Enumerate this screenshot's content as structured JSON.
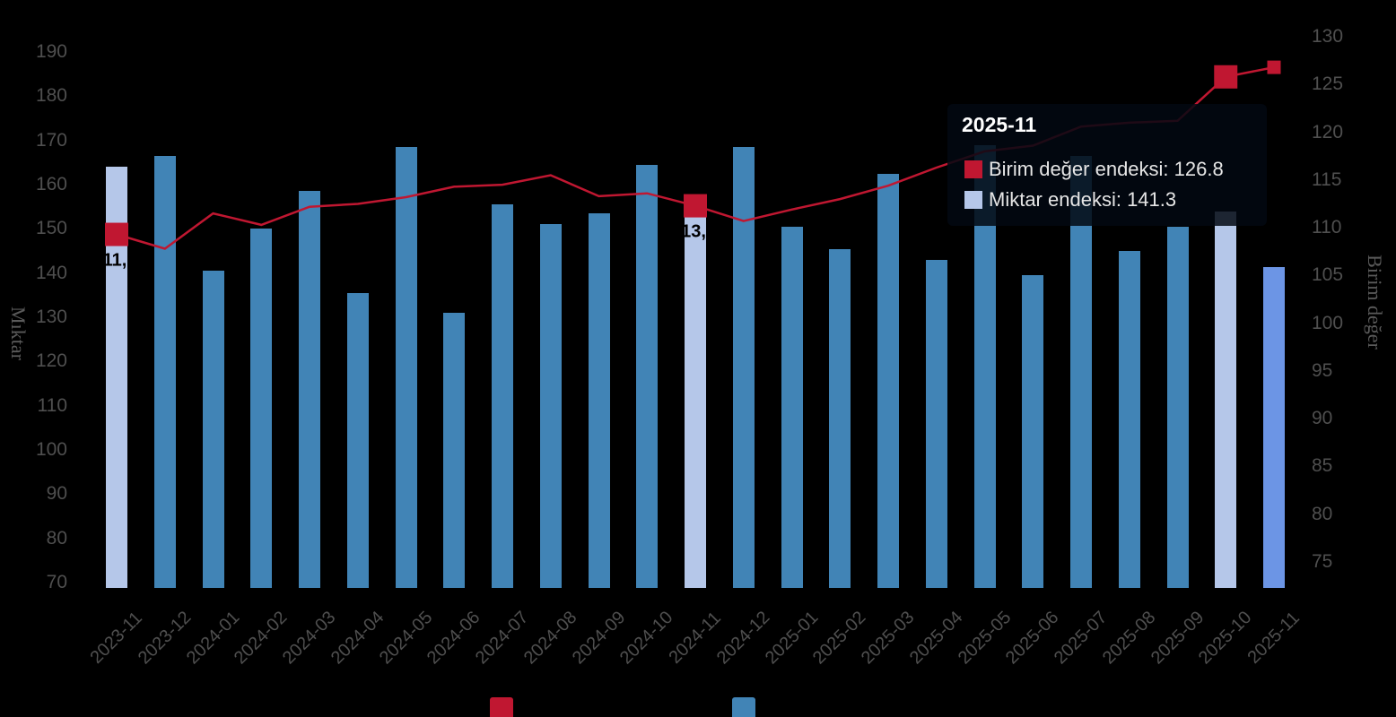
{
  "chart_data": {
    "type": "combo (bar + line, dual y-axis)",
    "categories": [
      "2023-11",
      "2023-12",
      "2024-01",
      "2024-02",
      "2024-03",
      "2024-04",
      "2024-05",
      "2024-06",
      "2024-07",
      "2024-08",
      "2024-09",
      "2024-10",
      "2024-11",
      "2024-12",
      "2025-01",
      "2025-02",
      "2025-03",
      "2025-04",
      "2025-05",
      "2025-06",
      "2025-07",
      "2025-08",
      "2025-09",
      "2025-10",
      "2025-11"
    ],
    "series": [
      {
        "name": "Miktar endeksi",
        "type": "bar",
        "yaxis": "left",
        "values": [
          164,
          166.5,
          140.5,
          150,
          158.5,
          135.5,
          168.5,
          131,
          155.5,
          151,
          153.5,
          164.5,
          157,
          168.5,
          150.5,
          145.5,
          162.5,
          143,
          169,
          139.5,
          166.5,
          145,
          150.5,
          154,
          141.3
        ]
      },
      {
        "name": "Birim değer endeksi",
        "type": "line",
        "yaxis": "right",
        "values": [
          109.3,
          107.8,
          111.5,
          110.3,
          112.2,
          112.5,
          113.2,
          114.3,
          114.5,
          115.5,
          113.3,
          113.6,
          112.3,
          110.7,
          111.9,
          113.0,
          114.4,
          116.3,
          118.0,
          118.6,
          120.6,
          121.0,
          121.2,
          125.8,
          126.8
        ]
      }
    ],
    "left_axis": {
      "title": "Mıktar",
      "range": [
        70,
        190
      ],
      "ticks": [
        190,
        180,
        170,
        160,
        150,
        140,
        130,
        120,
        110,
        100,
        90,
        80,
        70
      ]
    },
    "right_axis": {
      "title": "Birim değer",
      "range": [
        75,
        130
      ],
      "ticks": [
        130,
        125,
        120,
        115,
        110,
        105,
        100,
        95,
        90,
        85,
        80,
        75
      ]
    },
    "grid": false,
    "legend_position": "bottom (clipped at image edge, squares only visible)",
    "highlight_months_lavender": [
      "2023-11",
      "2024-11",
      "2025-10"
    ],
    "current_month_cornflower": "2025-11",
    "line_markers": [
      {
        "month": "2023-11",
        "size": 26
      },
      {
        "month": "2024-11",
        "size": 26
      },
      {
        "month": "2025-10",
        "size": 26
      },
      {
        "month": "2025-11",
        "size": 15
      }
    ],
    "annotations": [
      {
        "month": "2023-11",
        "text": "11,"
      },
      {
        "month": "2024-11",
        "text": "13,"
      }
    ]
  },
  "tooltip": {
    "title": "2025-11",
    "rows": [
      {
        "label": "Birim değer endeksi: ",
        "value": "126.8",
        "swatch_color": "#C01731"
      },
      {
        "label": "Miktar endeksi: ",
        "value": "141.3",
        "swatch_color": "#B5C7E9"
      }
    ]
  },
  "axes": {
    "left_title": "Mıktar",
    "right_title": "Birim değer"
  },
  "legend": {
    "items": [
      {
        "name": "line-series-swatch",
        "color": "#C01731"
      },
      {
        "name": "bar-series-swatch",
        "color": "#4184B6"
      }
    ]
  },
  "colors": {
    "background": "#000000",
    "bar_default": "#4184B6",
    "bar_highlight": "#B5C7E9",
    "bar_current": "#6C95E5",
    "line": "#C01731",
    "marker": "#C01731",
    "axis_tick_text": "#4F4F4F",
    "axis_title_text": "#5A5A5A",
    "tooltip_title": "#FFFFFF",
    "tooltip_text": "#E6E6E6",
    "annotation_text": "#000000"
  }
}
